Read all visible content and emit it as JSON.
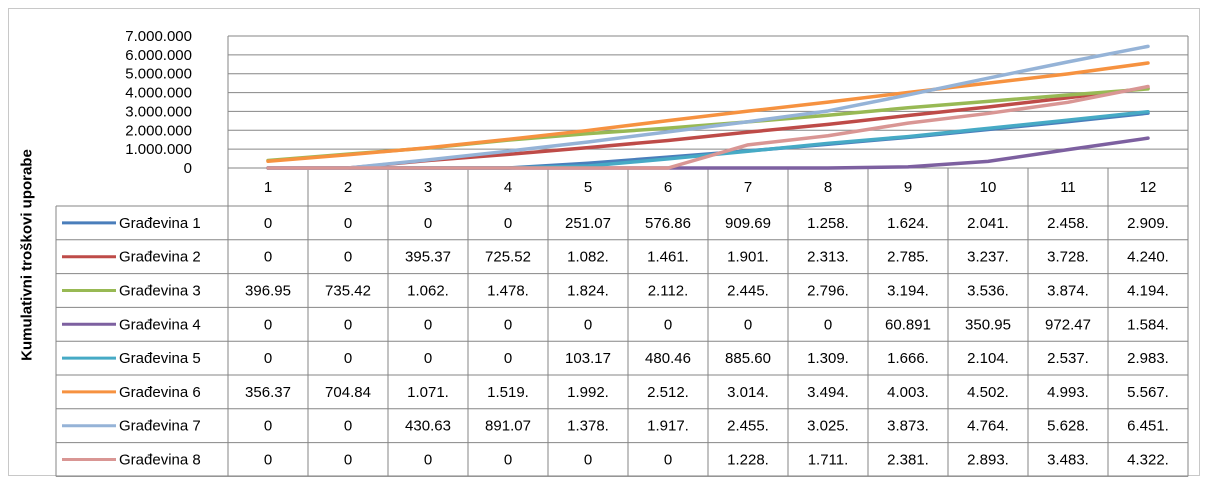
{
  "chart_data": {
    "type": "line",
    "title": "",
    "xlabel": "",
    "ylabel": "Kumulativni troškovi uporabe",
    "ylim": [
      0,
      7000000
    ],
    "yticks": [
      "0",
      "1.000.000",
      "2.000.000",
      "3.000.000",
      "4.000.000",
      "5.000.000",
      "6.000.000",
      "7.000.000"
    ],
    "grid": true,
    "legend": "data-table",
    "categories": [
      "1",
      "2",
      "3",
      "4",
      "5",
      "6",
      "7",
      "8",
      "9",
      "10",
      "11",
      "12"
    ],
    "series": [
      {
        "name": "Građevina 1",
        "color": "#4a7ebb",
        "values": [
          0,
          0,
          0,
          0,
          251070,
          576860,
          909690,
          1258000,
          1624000,
          2041000,
          2458000,
          2909000
        ],
        "labels": [
          "0",
          "0",
          "0",
          "0",
          "251.07",
          "576.86",
          "909.69",
          "1.258.",
          "1.624.",
          "2.041.",
          "2.458.",
          "2.909."
        ]
      },
      {
        "name": "Građevina 2",
        "color": "#be4b48",
        "values": [
          0,
          0,
          395370,
          725520,
          1082000,
          1461000,
          1901000,
          2313000,
          2785000,
          3237000,
          3728000,
          4240000
        ],
        "labels": [
          "0",
          "0",
          "395.37",
          "725.52",
          "1.082.",
          "1.461.",
          "1.901.",
          "2.313.",
          "2.785.",
          "3.237.",
          "3.728.",
          "4.240."
        ]
      },
      {
        "name": "Građevina 3",
        "color": "#98b954",
        "values": [
          396950,
          735420,
          1062000,
          1478000,
          1824000,
          2112000,
          2445000,
          2796000,
          3194000,
          3536000,
          3874000,
          4194000
        ],
        "labels": [
          "396.95",
          "735.42",
          "1.062.",
          "1.478.",
          "1.824.",
          "2.112.",
          "2.445.",
          "2.796.",
          "3.194.",
          "3.536.",
          "3.874.",
          "4.194."
        ]
      },
      {
        "name": "Građevina 4",
        "color": "#7d60a0",
        "values": [
          0,
          0,
          0,
          0,
          0,
          0,
          0,
          0,
          60891,
          350950,
          972470,
          1584000
        ],
        "labels": [
          "0",
          "0",
          "0",
          "0",
          "0",
          "0",
          "0",
          "0",
          "60.891",
          "350.95",
          "972.47",
          "1.584."
        ]
      },
      {
        "name": "Građevina 5",
        "color": "#46aac5",
        "values": [
          0,
          0,
          0,
          0,
          103170,
          480460,
          885600,
          1309000,
          1666000,
          2104000,
          2537000,
          2983000
        ],
        "labels": [
          "0",
          "0",
          "0",
          "0",
          "103.17",
          "480.46",
          "885.60",
          "1.309.",
          "1.666.",
          "2.104.",
          "2.537.",
          "2.983."
        ]
      },
      {
        "name": "Građevina 6",
        "color": "#f69240",
        "values": [
          356370,
          704840,
          1071000,
          1519000,
          1992000,
          2512000,
          3014000,
          3494000,
          4003000,
          4502000,
          4993000,
          5567000
        ],
        "labels": [
          "356.37",
          "704.84",
          "1.071.",
          "1.519.",
          "1.992.",
          "2.512.",
          "3.014.",
          "3.494.",
          "4.003.",
          "4.502.",
          "4.993.",
          "5.567."
        ]
      },
      {
        "name": "Građevina 7",
        "color": "#95b3d7",
        "values": [
          0,
          0,
          430630,
          891070,
          1378000,
          1917000,
          2455000,
          3025000,
          3873000,
          4764000,
          5628000,
          6451000
        ],
        "labels": [
          "0",
          "0",
          "430.63",
          "891.07",
          "1.378.",
          "1.917.",
          "2.455.",
          "3.025.",
          "3.873.",
          "4.764.",
          "5.628.",
          "6.451."
        ]
      },
      {
        "name": "Građevina 8",
        "color": "#d99694",
        "values": [
          0,
          0,
          0,
          0,
          0,
          0,
          1228000,
          1711000,
          2381000,
          2893000,
          3483000,
          4322000
        ],
        "labels": [
          "0",
          "0",
          "0",
          "0",
          "0",
          "0",
          "1.228.",
          "1.711.",
          "2.381.",
          "2.893.",
          "3.483.",
          "4.322."
        ]
      }
    ]
  }
}
